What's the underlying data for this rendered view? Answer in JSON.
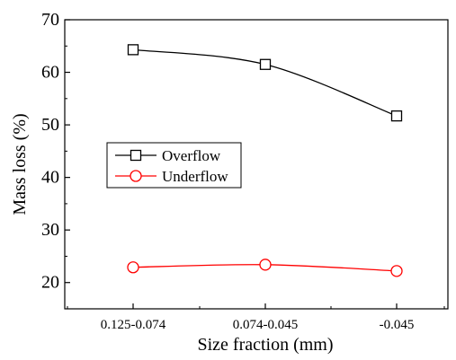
{
  "chart_data": {
    "type": "line",
    "categories": [
      "0.125-0.074",
      "0.074-0.045",
      "-0.045"
    ],
    "xlabel": "Size fraction (mm)",
    "ylabel": "Mass loss (%)",
    "ylim": [
      15,
      70
    ],
    "yticks": [
      20,
      30,
      40,
      50,
      60,
      70
    ],
    "grid": false,
    "legend_position": "center-left",
    "series": [
      {
        "name": "Overflow",
        "values": [
          64.3,
          61.5,
          51.7
        ],
        "color": "#000000",
        "marker": "square"
      },
      {
        "name": "Underflow",
        "values": [
          22.9,
          23.4,
          22.2
        ],
        "color": "#ff0000",
        "marker": "circle"
      }
    ]
  }
}
